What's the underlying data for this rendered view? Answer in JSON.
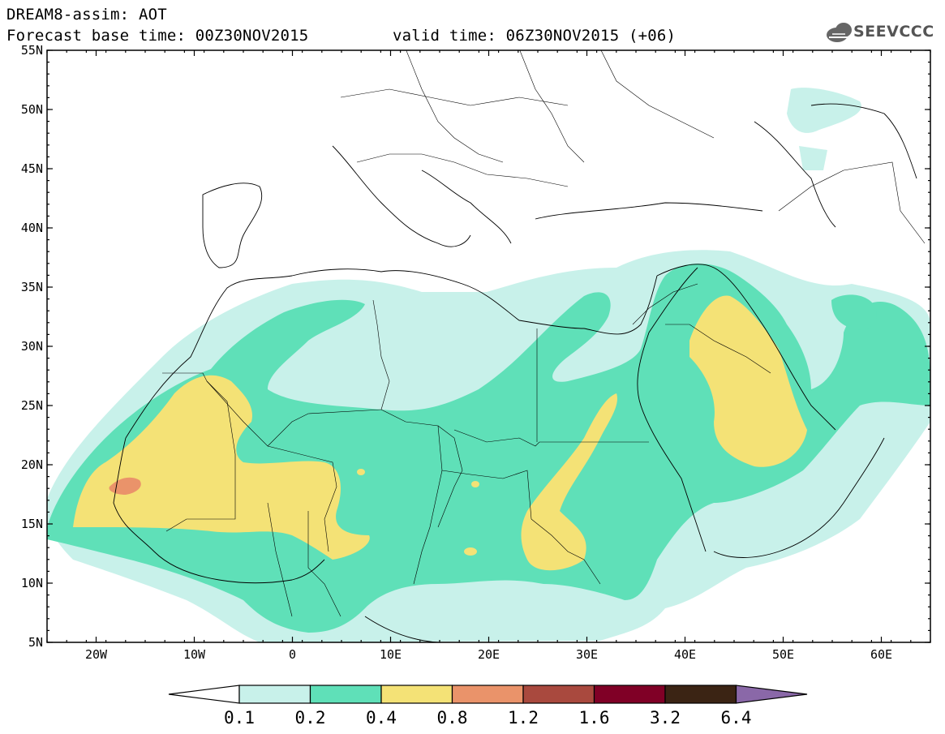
{
  "header": {
    "title_line1": "DREAM8-assim: AOT",
    "base_time": "Forecast base time: 00Z30NOV2015",
    "valid_time": "valid time: 06Z30NOV2015 (+06)",
    "logo_text": "SEEVCCC"
  },
  "map": {
    "projection": "lat-lon",
    "lon_range": [
      -25,
      65
    ],
    "lat_range": [
      5,
      55
    ],
    "lat_labels": [
      "55N",
      "50N",
      "45N",
      "40N",
      "35N",
      "30N",
      "25N",
      "20N",
      "15N",
      "10N",
      "5N"
    ],
    "lon_labels": [
      "20W",
      "10W",
      "0",
      "10E",
      "20E",
      "30E",
      "40E",
      "50E",
      "60E"
    ]
  },
  "colorbar": {
    "labels": [
      "0.1",
      "0.2",
      "0.4",
      "0.8",
      "1.2",
      "1.6",
      "3.2",
      "6.4"
    ],
    "colors": [
      "#c8f1ea",
      "#5fe0b8",
      "#f4e276",
      "#ea936a",
      "#a9493e",
      "#800026",
      "#3b2414",
      "#8a68a8"
    ],
    "low_arrow_color": "#ffffff"
  }
}
